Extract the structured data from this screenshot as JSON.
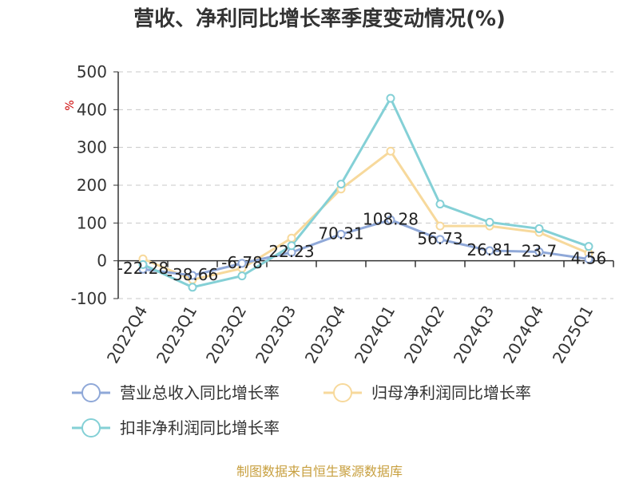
{
  "chart_data": {
    "type": "line",
    "title": "营收、净利同比增长率季度变动情况(%)",
    "ylabel": "%",
    "ylim": [
      -100,
      500
    ],
    "yticks": [
      500,
      400,
      300,
      200,
      100,
      0,
      -100
    ],
    "categories": [
      "2022Q4",
      "2023Q1",
      "2023Q2",
      "2023Q3",
      "2023Q4",
      "2024Q1",
      "2024Q2",
      "2024Q3",
      "2024Q4",
      "2025Q1"
    ],
    "series": [
      {
        "name": "营业总收入同比增长率",
        "color": "#8fa8d8",
        "values": [
          -22.28,
          -38.66,
          -6.78,
          22.23,
          70.31,
          108.28,
          56.73,
          26.81,
          23.7,
          4.56
        ],
        "labels": [
          "-22.28",
          "-38.66",
          "-6.78",
          "22.23",
          "70.31",
          "108.28",
          "56.73",
          "26.81",
          "23.7",
          "4.56"
        ]
      },
      {
        "name": "归母净利润同比增长率",
        "color": "#f7d99c",
        "values": [
          5,
          -50,
          -20,
          60,
          190,
          290,
          92,
          92,
          75,
          20
        ]
      },
      {
        "name": "扣非净利润同比增长率",
        "color": "#84d0d6",
        "values": [
          -10,
          -70,
          -40,
          40,
          203,
          430,
          150,
          102,
          85,
          38
        ]
      }
    ],
    "grid": true,
    "legend_position": "bottom"
  },
  "source_text": "制图数据来自恒生聚源数据库"
}
